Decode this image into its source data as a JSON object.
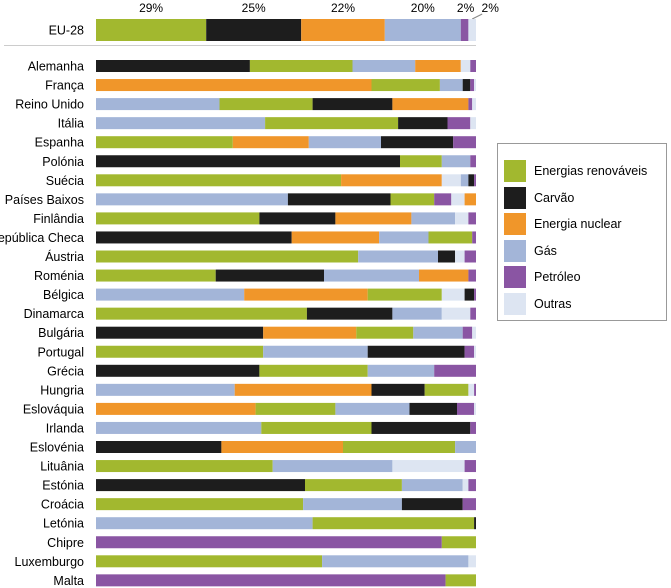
{
  "colors": {
    "renovaveis": "#a2b82f",
    "carvao": "#1d1d1d",
    "nuclear": "#f0962a",
    "gas": "#a3b5d8",
    "petroleo": "#8a55a3",
    "outras": "#dde5f2"
  },
  "chart_data": {
    "type": "bar",
    "orientation": "horizontal-stacked",
    "xlim": [
      0,
      100
    ],
    "unit": "%",
    "series_order": [
      "renovaveis",
      "carvao",
      "nuclear",
      "gas",
      "petroleo",
      "outras"
    ],
    "legend": [
      {
        "key": "renovaveis",
        "label": "Energias renováveis"
      },
      {
        "key": "carvao",
        "label": "Carvão"
      },
      {
        "key": "nuclear",
        "label": "Energia nuclear"
      },
      {
        "key": "gas",
        "label": "Gás"
      },
      {
        "key": "petroleo",
        "label": "Petróleo"
      },
      {
        "key": "outras",
        "label": "Outras"
      }
    ],
    "legend_placement": "right",
    "summary": {
      "category": "EU-28",
      "segments": [
        {
          "key": "renovaveis",
          "value": 29,
          "label": "29%"
        },
        {
          "key": "carvao",
          "value": 25,
          "label": "25%"
        },
        {
          "key": "nuclear",
          "value": 22,
          "label": "22%"
        },
        {
          "key": "gas",
          "value": 20,
          "label": "20%"
        },
        {
          "key": "petroleo",
          "value": 2,
          "label": "2%"
        },
        {
          "key": "outras",
          "value": 2,
          "label": "2%"
        }
      ]
    },
    "categories": [
      {
        "name": "Alemanha",
        "segments": [
          [
            "carvao",
            40.5
          ],
          [
            "renovaveis",
            27
          ],
          [
            "gas",
            16.5
          ],
          [
            "nuclear",
            12
          ],
          [
            "outras",
            2.5
          ],
          [
            "petroleo",
            1.5
          ]
        ]
      },
      {
        "name": "França",
        "segments": [
          [
            "nuclear",
            72.5
          ],
          [
            "renovaveis",
            18
          ],
          [
            "gas",
            6
          ],
          [
            "carvao",
            2
          ],
          [
            "petroleo",
            1
          ],
          [
            "outras",
            0.5
          ]
        ]
      },
      {
        "name": "Reino Unido",
        "segments": [
          [
            "gas",
            32.5
          ],
          [
            "renovaveis",
            24.5
          ],
          [
            "carvao",
            21
          ],
          [
            "nuclear",
            20
          ],
          [
            "petroleo",
            1
          ],
          [
            "outras",
            1
          ]
        ]
      },
      {
        "name": "Itália",
        "segments": [
          [
            "gas",
            44.5
          ],
          [
            "renovaveis",
            35
          ],
          [
            "carvao",
            13
          ],
          [
            "petroleo",
            6
          ],
          [
            "outras",
            1.5
          ]
        ]
      },
      {
        "name": "Espanha",
        "segments": [
          [
            "renovaveis",
            36
          ],
          [
            "nuclear",
            20
          ],
          [
            "gas",
            19
          ],
          [
            "carvao",
            19
          ],
          [
            "petroleo",
            6
          ]
        ]
      },
      {
        "name": "Polónia",
        "segments": [
          [
            "carvao",
            80
          ],
          [
            "renovaveis",
            11
          ],
          [
            "gas",
            7.5
          ],
          [
            "petroleo",
            1.5
          ]
        ]
      },
      {
        "name": "Suécia",
        "segments": [
          [
            "renovaveis",
            64.5
          ],
          [
            "nuclear",
            26.5
          ],
          [
            "outras",
            5
          ],
          [
            "gas",
            2
          ],
          [
            "carvao",
            1.5
          ],
          [
            "petroleo",
            0.5
          ]
        ]
      },
      {
        "name": "Países Baixos",
        "segments": [
          [
            "gas",
            50.5
          ],
          [
            "carvao",
            27
          ],
          [
            "renovaveis",
            11.5
          ],
          [
            "petroleo",
            4.5
          ],
          [
            "outras",
            3.5
          ],
          [
            "nuclear",
            3
          ]
        ]
      },
      {
        "name": "Finlândia",
        "segments": [
          [
            "renovaveis",
            43
          ],
          [
            "carvao",
            20
          ],
          [
            "nuclear",
            20
          ],
          [
            "gas",
            11.5
          ],
          [
            "outras",
            3.5
          ],
          [
            "petroleo",
            2
          ]
        ]
      },
      {
        "name": "República Checa",
        "segments": [
          [
            "carvao",
            51.5
          ],
          [
            "nuclear",
            23
          ],
          [
            "gas",
            13
          ],
          [
            "renovaveis",
            11.5
          ],
          [
            "petroleo",
            1
          ]
        ]
      },
      {
        "name": "Áustria",
        "segments": [
          [
            "renovaveis",
            69
          ],
          [
            "gas",
            21
          ],
          [
            "carvao",
            4.5
          ],
          [
            "outras",
            2.5
          ],
          [
            "petroleo",
            3
          ]
        ]
      },
      {
        "name": "Roménia",
        "segments": [
          [
            "renovaveis",
            31.5
          ],
          [
            "carvao",
            28.5
          ],
          [
            "gas",
            25
          ],
          [
            "nuclear",
            13
          ],
          [
            "petroleo",
            2
          ]
        ]
      },
      {
        "name": "Bélgica",
        "segments": [
          [
            "gas",
            39
          ],
          [
            "nuclear",
            32.5
          ],
          [
            "renovaveis",
            19.5
          ],
          [
            "outras",
            6
          ],
          [
            "carvao",
            2.5
          ],
          [
            "petroleo",
            0.5
          ]
        ]
      },
      {
        "name": "Dinamarca",
        "segments": [
          [
            "renovaveis",
            55.5
          ],
          [
            "carvao",
            22.5
          ],
          [
            "gas",
            13
          ],
          [
            "outras",
            7.5
          ],
          [
            "petroleo",
            1.5
          ]
        ]
      },
      {
        "name": "Bulgária",
        "segments": [
          [
            "carvao",
            44
          ],
          [
            "nuclear",
            24.5
          ],
          [
            "renovaveis",
            15
          ],
          [
            "gas",
            13
          ],
          [
            "petroleo",
            2.5
          ],
          [
            "outras",
            1
          ]
        ]
      },
      {
        "name": "Portugal",
        "segments": [
          [
            "renovaveis",
            44
          ],
          [
            "gas",
            27.5
          ],
          [
            "carvao",
            25.5
          ],
          [
            "petroleo",
            2.5
          ],
          [
            "outras",
            0.5
          ]
        ]
      },
      {
        "name": "Grécia",
        "segments": [
          [
            "carvao",
            43
          ],
          [
            "renovaveis",
            28.5
          ],
          [
            "gas",
            17.5
          ],
          [
            "petroleo",
            11
          ]
        ]
      },
      {
        "name": "Hungria",
        "segments": [
          [
            "gas",
            36.5
          ],
          [
            "nuclear",
            36
          ],
          [
            "carvao",
            14
          ],
          [
            "renovaveis",
            11.5
          ],
          [
            "outras",
            1.5
          ],
          [
            "petroleo",
            0.5
          ]
        ]
      },
      {
        "name": "Eslováquia",
        "segments": [
          [
            "nuclear",
            42
          ],
          [
            "renovaveis",
            21
          ],
          [
            "gas",
            19.5
          ],
          [
            "carvao",
            12.5
          ],
          [
            "petroleo",
            4.5
          ],
          [
            "outras",
            0.5
          ]
        ]
      },
      {
        "name": "Irlanda",
        "segments": [
          [
            "gas",
            43.5
          ],
          [
            "renovaveis",
            29
          ],
          [
            "carvao",
            26
          ],
          [
            "petroleo",
            1.5
          ]
        ]
      },
      {
        "name": "Eslovénia",
        "segments": [
          [
            "carvao",
            33
          ],
          [
            "nuclear",
            32
          ],
          [
            "renovaveis",
            29.5
          ],
          [
            "gas",
            5.5
          ]
        ]
      },
      {
        "name": "Lituânia",
        "segments": [
          [
            "renovaveis",
            46.5
          ],
          [
            "gas",
            31.5
          ],
          [
            "outras",
            19
          ],
          [
            "petroleo",
            3
          ]
        ]
      },
      {
        "name": "Estónia",
        "segments": [
          [
            "carvao",
            55
          ],
          [
            "renovaveis",
            25.5
          ],
          [
            "gas",
            16
          ],
          [
            "outras",
            1.5
          ],
          [
            "petroleo",
            2
          ]
        ]
      },
      {
        "name": "Croácia",
        "segments": [
          [
            "renovaveis",
            54.5
          ],
          [
            "gas",
            26
          ],
          [
            "carvao",
            16
          ],
          [
            "petroleo",
            3.5
          ]
        ]
      },
      {
        "name": "Letónia",
        "segments": [
          [
            "gas",
            57
          ],
          [
            "renovaveis",
            42.5
          ],
          [
            "carvao",
            0.5
          ]
        ]
      },
      {
        "name": "Chipre",
        "segments": [
          [
            "petroleo",
            91
          ],
          [
            "renovaveis",
            9
          ]
        ]
      },
      {
        "name": "Luxemburgo",
        "segments": [
          [
            "renovaveis",
            59.5
          ],
          [
            "gas",
            38.5
          ],
          [
            "outras",
            2
          ]
        ]
      },
      {
        "name": "Malta",
        "segments": [
          [
            "petroleo",
            92
          ],
          [
            "renovaveis",
            8
          ]
        ]
      }
    ]
  }
}
